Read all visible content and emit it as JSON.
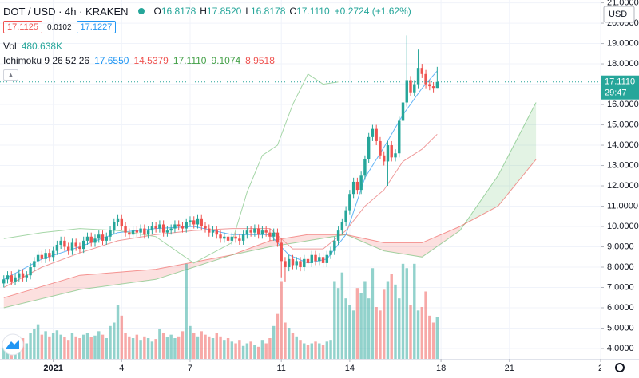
{
  "header": {
    "symbol": "DOT / USD · 4h · KRAKEN",
    "ohlc": [
      {
        "key": "O",
        "value": "16.8178"
      },
      {
        "key": "H",
        "value": "17.8520"
      },
      {
        "key": "L",
        "value": "16.8178"
      },
      {
        "key": "C",
        "value": "17.1110"
      }
    ],
    "change": "+0.2724 (+1.62%)",
    "bid": "17.1125",
    "spread": "0.0102",
    "ask": "17.1227",
    "volume": {
      "label": "Vol",
      "value": "480.638K"
    },
    "indicator": {
      "name": "Ichimoku 9 26 52 26",
      "values": [
        "17.6550",
        "14.5379",
        "17.1110",
        "9.1074",
        "8.9518"
      ],
      "colors": [
        "#2196f3",
        "#ef5350",
        "#43a047",
        "#43a047",
        "#ef5350"
      ]
    },
    "currency": "USD",
    "price": "17.1110",
    "countdown": "29:47"
  },
  "chart_data": {
    "type": "candlestick",
    "up_color": "#26a69a",
    "down_color": "#ef5350",
    "grid": true,
    "ylim": [
      3.49,
      21.14
    ],
    "yticks": [
      {
        "value": 4,
        "label": "4.0000"
      },
      {
        "value": 5,
        "label": "5.0000"
      },
      {
        "value": 6,
        "label": "6.0000"
      },
      {
        "value": 7,
        "label": "7.0000"
      },
      {
        "value": 8,
        "label": "8.0000"
      },
      {
        "value": 9,
        "label": "9.0000"
      },
      {
        "value": 10,
        "label": "10.0000"
      },
      {
        "value": 11,
        "label": "11.0000"
      },
      {
        "value": 12,
        "label": "12.0000"
      },
      {
        "value": 13,
        "label": "13.0000"
      },
      {
        "value": 14,
        "label": "14.0000"
      },
      {
        "value": 15,
        "label": "15.0000"
      },
      {
        "value": 16,
        "label": "16.0000"
      },
      {
        "value": 17,
        "label": "17.0000"
      },
      {
        "value": 18,
        "label": "18.0000"
      },
      {
        "value": 19,
        "label": "19.0000"
      },
      {
        "value": 20,
        "label": "20.0000"
      },
      {
        "value": 21,
        "label": "21.0000"
      }
    ],
    "xlim": [
      -1,
      157
    ],
    "xticks": [
      {
        "value": 13,
        "label": "2021"
      },
      {
        "value": 31,
        "label": "4"
      },
      {
        "value": 49,
        "label": "7"
      },
      {
        "value": 73,
        "label": "11"
      },
      {
        "value": 91,
        "label": "14"
      },
      {
        "value": 115,
        "label": "18"
      },
      {
        "value": 133,
        "label": "21"
      },
      {
        "value": 157,
        "label": "2"
      }
    ],
    "open": [
      7.2,
      7.4,
      7.6,
      7.3,
      7.5,
      7.7,
      7.5,
      7.6,
      8.0,
      8.3,
      8.6,
      8.4,
      8.7,
      8.5,
      8.8,
      9.1,
      9.3,
      9.0,
      8.8,
      9.2,
      9.0,
      8.9,
      9.3,
      9.5,
      9.2,
      9.4,
      9.6,
      9.3,
      9.5,
      9.8,
      10.2,
      10.4,
      10.0,
      9.7,
      9.6,
      9.8,
      9.7,
      9.9,
      9.6,
      9.8,
      10.0,
      9.9,
      10.1,
      9.7,
      9.8,
      9.9,
      10.1,
      10.0,
      9.9,
      10.2,
      10.3,
      10.1,
      10.4,
      10.0,
      9.9,
      9.7,
      9.8,
      9.6,
      9.4,
      9.5,
      9.3,
      9.5,
      9.4,
      9.3,
      9.6,
      9.8,
      9.7,
      9.9,
      9.6,
      9.8,
      9.7,
      9.5,
      9.7,
      9.2,
      8.3,
      8.0,
      8.4,
      8.1,
      8.3,
      8.0,
      8.4,
      8.2,
      8.6,
      8.3,
      8.5,
      8.2,
      8.6,
      8.8,
      9.3,
      9.8,
      10.2,
      10.8,
      11.6,
      12.2,
      11.8,
      12.5,
      13.3,
      14.4,
      14.8,
      14.2,
      13.5,
      13.2,
      14.0,
      13.4,
      13.6,
      15.2,
      16.1,
      17.2,
      16.6,
      17.0,
      17.8,
      17.5,
      17.0,
      16.9,
      16.8178
    ],
    "high": [
      7.6,
      7.8,
      7.8,
      7.7,
      7.9,
      7.9,
      7.8,
      8.2,
      8.5,
      8.8,
      8.8,
      8.9,
      8.9,
      9.0,
      9.3,
      9.5,
      9.5,
      9.2,
      9.4,
      9.4,
      9.2,
      9.5,
      9.7,
      9.7,
      9.6,
      9.8,
      9.8,
      9.7,
      10.0,
      10.4,
      10.6,
      10.6,
      10.2,
      9.9,
      10.0,
      10.0,
      10.1,
      10.1,
      10.0,
      10.2,
      10.2,
      10.3,
      10.3,
      10.0,
      10.1,
      10.3,
      10.3,
      10.2,
      10.4,
      10.5,
      10.5,
      10.6,
      10.6,
      10.2,
      10.1,
      10.0,
      10.0,
      9.8,
      9.7,
      9.7,
      9.7,
      9.7,
      9.6,
      9.8,
      10.0,
      10.0,
      10.1,
      10.1,
      10.0,
      10.0,
      9.9,
      9.9,
      9.9,
      9.4,
      8.5,
      8.6,
      8.6,
      8.5,
      8.5,
      8.6,
      8.6,
      8.8,
      8.8,
      8.7,
      8.7,
      8.8,
      9.0,
      9.5,
      10.0,
      10.4,
      11.0,
      11.8,
      12.4,
      12.4,
      12.7,
      13.5,
      14.6,
      15.0,
      15.0,
      14.4,
      13.7,
      14.2,
      14.2,
      13.8,
      15.4,
      16.3,
      19.4,
      17.4,
      17.2,
      18.7,
      18.0,
      17.7,
      17.2,
      17.1,
      17.852
    ],
    "low": [
      7.0,
      7.2,
      7.1,
      7.1,
      7.3,
      7.3,
      7.3,
      7.4,
      7.8,
      8.1,
      8.2,
      8.2,
      8.3,
      8.3,
      8.6,
      8.9,
      8.8,
      8.6,
      8.6,
      8.8,
      8.7,
      8.7,
      9.1,
      9.0,
      9.0,
      9.2,
      9.1,
      9.1,
      9.3,
      9.6,
      10.0,
      9.8,
      9.5,
      9.4,
      9.4,
      9.5,
      9.5,
      9.4,
      9.4,
      9.6,
      9.7,
      9.7,
      9.5,
      9.5,
      9.6,
      9.7,
      9.8,
      9.7,
      9.7,
      10.0,
      9.9,
      9.9,
      9.8,
      9.7,
      9.5,
      9.5,
      9.4,
      9.2,
      9.2,
      9.1,
      9.1,
      9.2,
      9.1,
      9.1,
      9.4,
      9.5,
      9.5,
      9.4,
      9.4,
      9.5,
      9.3,
      9.3,
      9.0,
      7.5,
      7.3,
      7.8,
      7.9,
      7.9,
      7.8,
      7.8,
      8.0,
      8.0,
      8.1,
      8.1,
      8.0,
      8.0,
      8.4,
      8.6,
      9.1,
      9.6,
      10.0,
      10.6,
      11.4,
      11.6,
      11.6,
      12.3,
      13.1,
      14.2,
      14.0,
      13.3,
      13.0,
      12.0,
      13.2,
      13.2,
      13.4,
      15.0,
      15.9,
      16.4,
      16.4,
      16.8,
      17.3,
      16.8,
      16.7,
      16.6,
      16.8178
    ],
    "close": [
      7.4,
      7.6,
      7.3,
      7.5,
      7.7,
      7.5,
      7.6,
      8.0,
      8.3,
      8.6,
      8.4,
      8.7,
      8.5,
      8.8,
      9.1,
      9.3,
      9.0,
      8.8,
      9.2,
      9.0,
      8.9,
      9.3,
      9.5,
      9.2,
      9.4,
      9.6,
      9.3,
      9.5,
      9.8,
      10.2,
      10.4,
      10.0,
      9.7,
      9.6,
      9.8,
      9.7,
      9.9,
      9.6,
      9.8,
      10.0,
      9.9,
      10.1,
      9.7,
      9.8,
      9.9,
      10.1,
      10.0,
      9.9,
      10.2,
      10.3,
      10.1,
      10.4,
      10.0,
      9.9,
      9.7,
      9.8,
      9.6,
      9.4,
      9.5,
      9.3,
      9.5,
      9.4,
      9.3,
      9.6,
      9.8,
      9.7,
      9.9,
      9.6,
      9.8,
      9.7,
      9.5,
      9.7,
      9.2,
      8.3,
      8.0,
      8.4,
      8.1,
      8.3,
      8.0,
      8.4,
      8.2,
      8.6,
      8.3,
      8.5,
      8.2,
      8.6,
      8.8,
      9.3,
      9.8,
      10.2,
      10.8,
      11.6,
      12.2,
      11.8,
      12.5,
      13.3,
      14.4,
      14.8,
      14.2,
      13.5,
      13.2,
      14.0,
      13.4,
      13.6,
      15.2,
      16.1,
      17.2,
      16.6,
      17.0,
      17.8,
      17.5,
      17.0,
      16.9,
      16.8178,
      17.111
    ],
    "volume": [
      180,
      220,
      150,
      200,
      260,
      240,
      180,
      300,
      350,
      400,
      280,
      320,
      260,
      300,
      330,
      280,
      250,
      220,
      300,
      260,
      240,
      280,
      300,
      250,
      270,
      320,
      280,
      240,
      380,
      420,
      620,
      500,
      300,
      260,
      240,
      280,
      220,
      260,
      240,
      200,
      230,
      350,
      300,
      250,
      280,
      240,
      260,
      320,
      1100,
      380,
      300,
      260,
      320,
      280,
      260,
      240,
      300,
      260,
      220,
      240,
      200,
      180,
      220,
      150,
      180,
      200,
      160,
      140,
      220,
      180,
      240,
      380,
      520,
      900,
      420,
      360,
      300,
      260,
      220,
      180,
      160,
      180,
      200,
      180,
      160,
      200,
      220,
      900,
      820,
      1000,
      700,
      620,
      560,
      820,
      760,
      900,
      700,
      1050,
      600,
      560,
      800,
      900,
      980,
      860,
      700,
      1100,
      1050,
      620,
      1100,
      560,
      600,
      780,
      500,
      420,
      480.638
    ],
    "volume_lim": [
      0,
      1200
    ],
    "indicators": [
      {
        "color": "#64b5f6",
        "x": [
          0,
          10,
          20,
          30,
          40,
          50,
          60,
          70,
          75,
          80,
          85,
          90,
          95,
          100,
          105,
          110,
          114
        ],
        "values": [
          7.4,
          8.4,
          9.0,
          9.7,
          9.9,
          10.0,
          9.6,
          9.6,
          8.6,
          8.2,
          8.4,
          9.6,
          12.4,
          13.9,
          15.5,
          16.8,
          17.655
        ]
      },
      {
        "color": "#ef9a9a",
        "x": [
          0,
          10,
          20,
          30,
          40,
          50,
          60,
          70,
          76,
          84,
          90,
          95,
          100,
          105,
          110,
          114
        ],
        "values": [
          7.0,
          8.0,
          8.7,
          9.3,
          9.6,
          9.8,
          9.9,
          9.9,
          8.9,
          8.9,
          9.8,
          11.0,
          11.8,
          13.2,
          13.8,
          14.5379
        ]
      },
      {
        "color": "#a5d6a7",
        "x": [
          0,
          10,
          20,
          30,
          40,
          50,
          60,
          64,
          68,
          72,
          76,
          80,
          84,
          88
        ],
        "values": [
          9.4,
          9.7,
          9.9,
          9.8,
          9.5,
          8.2,
          9.2,
          11.7,
          13.5,
          14.0,
          16.0,
          17.5,
          17.0,
          17.111
        ]
      }
    ],
    "cloud": {
      "up_color": "#66bb6a",
      "down_color": "#ef5350",
      "x": [
        0,
        20,
        40,
        60,
        70,
        80,
        90,
        100,
        110,
        120,
        130,
        140
      ],
      "span_a": [
        6.0,
        6.9,
        7.4,
        8.6,
        9.0,
        9.3,
        9.6,
        8.8,
        8.5,
        9.8,
        12.5,
        16.1
      ],
      "span_b": [
        6.5,
        7.6,
        7.9,
        8.6,
        9.3,
        9.6,
        9.6,
        9.2,
        9.2,
        10.0,
        11.0,
        13.3
      ]
    }
  }
}
